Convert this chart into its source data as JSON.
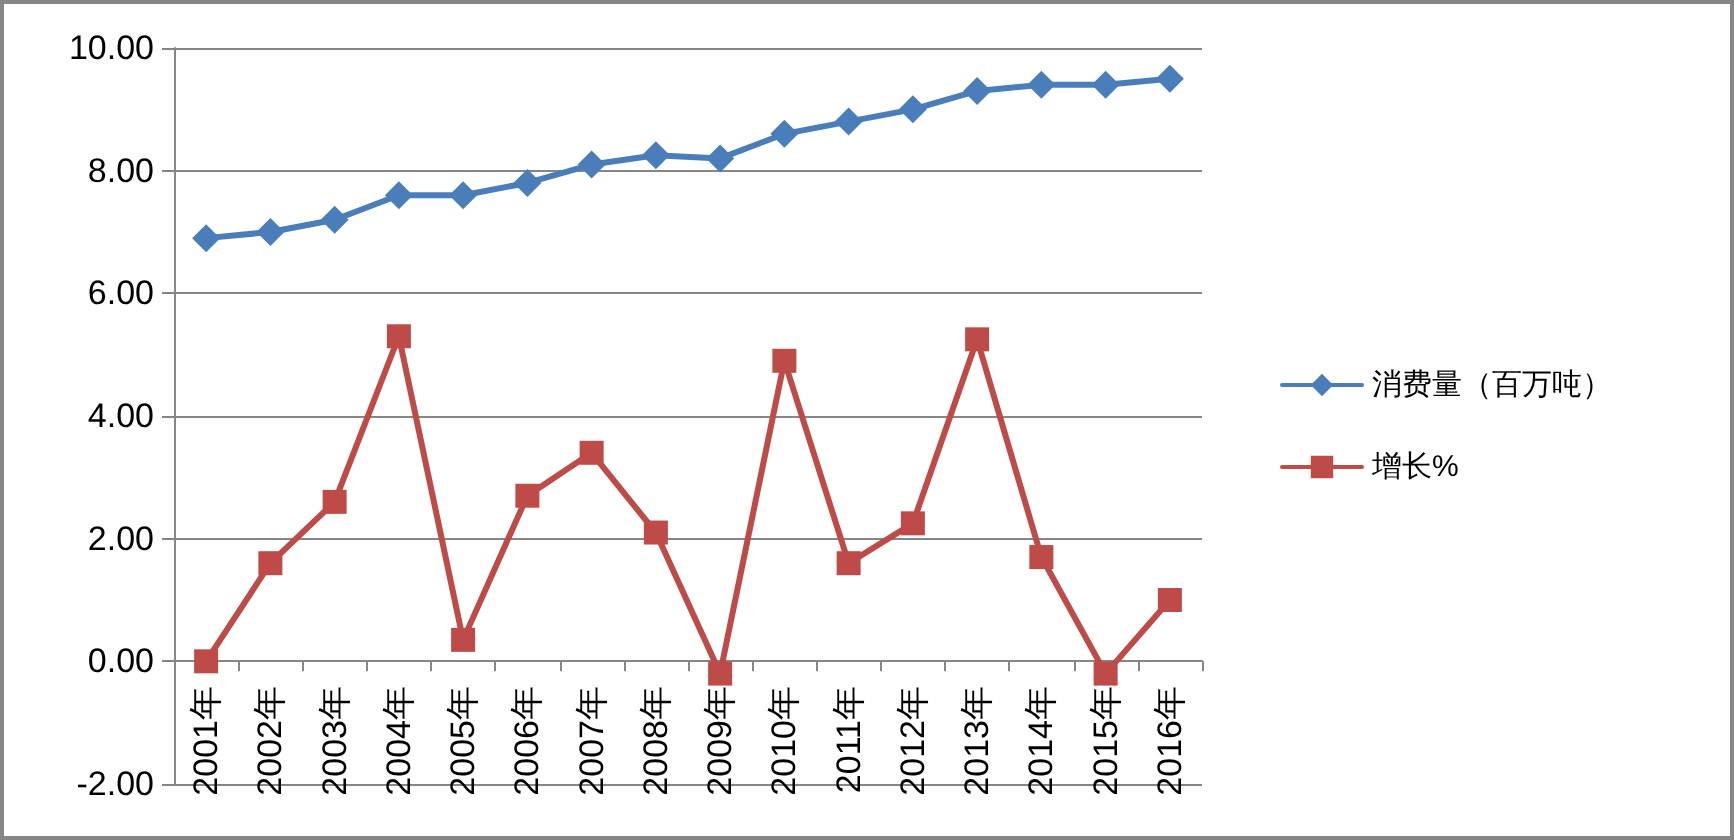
{
  "chart_data": {
    "type": "line",
    "categories": [
      "2001年",
      "2002年",
      "2003年",
      "2004年",
      "2005年",
      "2006年",
      "2007年",
      "2008年",
      "2009年",
      "2010年",
      "2011年",
      "2012年",
      "2013年",
      "2014年",
      "2015年",
      "2016年"
    ],
    "series": [
      {
        "name": "消费量（百万吨）",
        "color": "#4a7ebb",
        "marker": "diamond",
        "values": [
          6.9,
          7.0,
          7.2,
          7.6,
          7.6,
          7.8,
          8.1,
          8.25,
          8.2,
          8.6,
          8.8,
          9.0,
          9.3,
          9.4,
          9.4,
          9.5
        ]
      },
      {
        "name": "增长%",
        "color": "#be4b48",
        "marker": "square",
        "values": [
          0,
          1.6,
          2.6,
          5.3,
          0.35,
          2.7,
          3.4,
          2.1,
          -0.2,
          4.9,
          1.6,
          2.25,
          5.25,
          1.7,
          -0.2,
          1.0
        ]
      }
    ],
    "ylim": [
      -2,
      10
    ],
    "yticks": [
      {
        "value": -2,
        "label": "-2.00"
      },
      {
        "value": 0,
        "label": "0.00"
      },
      {
        "value": 2,
        "label": "2.00"
      },
      {
        "value": 4,
        "label": "4.00"
      },
      {
        "value": 6,
        "label": "6.00"
      },
      {
        "value": 8,
        "label": "8.00"
      },
      {
        "value": 10,
        "label": "10.00"
      }
    ],
    "grid": "y",
    "legend": "right",
    "line_style": "solid"
  }
}
